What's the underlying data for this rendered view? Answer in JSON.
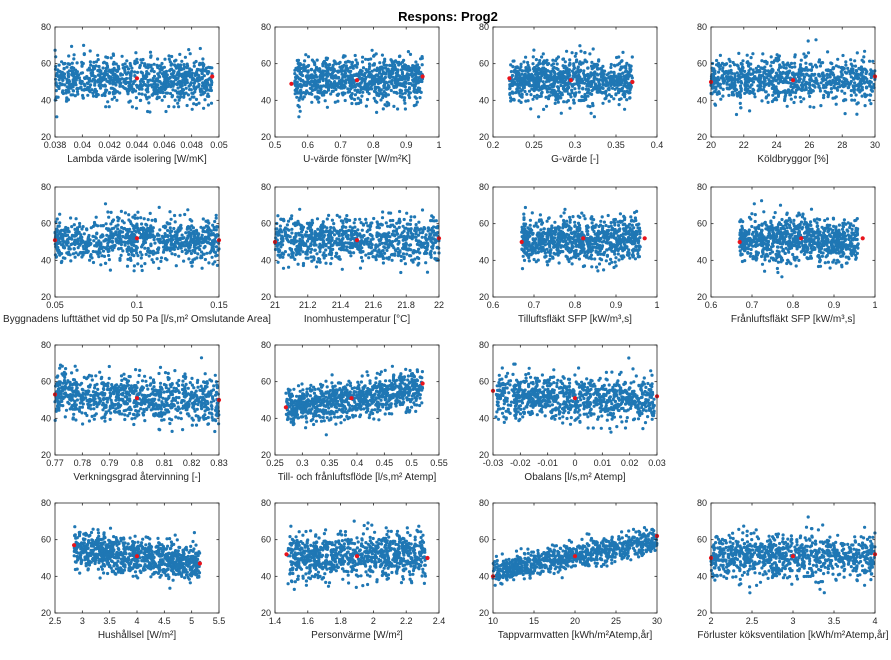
{
  "figure": {
    "title": "Respons: Prog2",
    "point_color": "#1f77b4",
    "highlight_color": "#e8141c"
  },
  "chart_data": [
    {
      "type": "scatter",
      "id": "p1",
      "xlabel": "Lambda värde isolering [W/mK]",
      "xlim": [
        0.038,
        0.05
      ],
      "xticks": [
        0.038,
        0.04,
        0.042,
        0.044,
        0.046,
        0.048,
        0.05
      ],
      "xtick_labels": [
        "0.038",
        "0.04",
        "0.042",
        "0.044",
        "0.046",
        "0.048",
        "0.05"
      ],
      "ylim": [
        20,
        80
      ],
      "yticks": [
        20,
        40,
        60,
        80
      ],
      "x_range": [
        0.038,
        0.0495
      ],
      "y_center": 51,
      "y_spread": 6,
      "trend": 0,
      "highlight": [
        [
          0.044,
          52
        ],
        [
          0.0495,
          53
        ]
      ]
    },
    {
      "type": "scatter",
      "id": "p2",
      "xlabel": "U-värde fönster [W/m²K]",
      "xlim": [
        0.5,
        1
      ],
      "xticks": [
        0.5,
        0.6,
        0.7,
        0.8,
        0.9,
        1
      ],
      "xtick_labels": [
        "0.5",
        "0.6",
        "0.7",
        "0.8",
        "0.9",
        "1"
      ],
      "ylim": [
        20,
        80
      ],
      "yticks": [
        20,
        40,
        60,
        80
      ],
      "x_range": [
        0.56,
        0.95
      ],
      "y_center": 51,
      "y_spread": 6,
      "trend": 0,
      "highlight": [
        [
          0.55,
          49
        ],
        [
          0.75,
          51
        ],
        [
          0.95,
          53
        ]
      ]
    },
    {
      "type": "scatter",
      "id": "p3",
      "xlabel": "G-värde [-]",
      "xlim": [
        0.2,
        0.4
      ],
      "xticks": [
        0.2,
        0.25,
        0.3,
        0.35,
        0.4
      ],
      "xtick_labels": [
        "0.2",
        "0.25",
        "0.3",
        "0.35",
        "0.4"
      ],
      "ylim": [
        20,
        80
      ],
      "yticks": [
        20,
        40,
        60,
        80
      ],
      "x_range": [
        0.22,
        0.37
      ],
      "y_center": 51,
      "y_spread": 6,
      "trend": 0,
      "highlight": [
        [
          0.22,
          52
        ],
        [
          0.295,
          51
        ],
        [
          0.37,
          50
        ]
      ]
    },
    {
      "type": "scatter",
      "id": "p4",
      "xlabel": "Köldbryggor [%]",
      "xlim": [
        20,
        30
      ],
      "xticks": [
        20,
        22,
        24,
        26,
        28,
        30
      ],
      "xtick_labels": [
        "20",
        "22",
        "24",
        "26",
        "28",
        "30"
      ],
      "ylim": [
        20,
        80
      ],
      "yticks": [
        20,
        40,
        60,
        80
      ],
      "x_range": [
        20,
        30
      ],
      "y_center": 51,
      "y_spread": 6,
      "trend": 0,
      "highlight": [
        [
          20,
          50
        ],
        [
          25,
          51
        ],
        [
          30,
          53
        ]
      ]
    },
    {
      "type": "scatter",
      "id": "p5",
      "xlabel": "Byggnadens lufttäthet vid dp 50 Pa [l/s,m² Omslutande Area]",
      "xlim": [
        0.05,
        0.15
      ],
      "xticks": [
        0.05,
        0.1,
        0.15
      ],
      "xtick_labels": [
        "0.05",
        "0.1",
        "0.15"
      ],
      "ylim": [
        20,
        80
      ],
      "yticks": [
        20,
        40,
        60,
        80
      ],
      "x_range": [
        0.05,
        0.15
      ],
      "y_center": 51,
      "y_spread": 6,
      "trend": 0,
      "highlight": [
        [
          0.05,
          51
        ],
        [
          0.1,
          52
        ],
        [
          0.15,
          51
        ]
      ]
    },
    {
      "type": "scatter",
      "id": "p6",
      "xlabel": "Inomhustemperatur [°C]",
      "xlim": [
        21,
        22
      ],
      "xticks": [
        21,
        21.2,
        21.4,
        21.6,
        21.8,
        22
      ],
      "xtick_labels": [
        "21",
        "21.2",
        "21.4",
        "21.6",
        "21.8",
        "22"
      ],
      "ylim": [
        20,
        80
      ],
      "yticks": [
        20,
        40,
        60,
        80
      ],
      "x_range": [
        21,
        22
      ],
      "y_center": 51,
      "y_spread": 6,
      "trend": 0,
      "highlight": [
        [
          21,
          50
        ],
        [
          21.5,
          51
        ],
        [
          22,
          52
        ]
      ]
    },
    {
      "type": "scatter",
      "id": "p7",
      "xlabel": "Tilluftsfläkt SFP [kW/m³,s]",
      "xlim": [
        0.6,
        1
      ],
      "xticks": [
        0.6,
        0.7,
        0.8,
        0.9,
        1
      ],
      "xtick_labels": [
        "0.6",
        "0.7",
        "0.8",
        "0.9",
        "1"
      ],
      "ylim": [
        20,
        80
      ],
      "yticks": [
        20,
        40,
        60,
        80
      ],
      "x_range": [
        0.67,
        0.96
      ],
      "y_center": 51,
      "y_spread": 6,
      "trend": 0,
      "highlight": [
        [
          0.67,
          50
        ],
        [
          0.82,
          52
        ],
        [
          0.97,
          52
        ]
      ]
    },
    {
      "type": "scatter",
      "id": "p8",
      "xlabel": "Frånluftsfläkt SFP [kW/m³,s]",
      "xlim": [
        0.6,
        1
      ],
      "xticks": [
        0.6,
        0.7,
        0.8,
        0.9,
        1
      ],
      "xtick_labels": [
        "0.6",
        "0.7",
        "0.8",
        "0.9",
        "1"
      ],
      "ylim": [
        20,
        80
      ],
      "yticks": [
        20,
        40,
        60,
        80
      ],
      "x_range": [
        0.67,
        0.96
      ],
      "y_center": 51,
      "y_spread": 6,
      "trend": 0,
      "highlight": [
        [
          0.67,
          50
        ],
        [
          0.82,
          52
        ],
        [
          0.97,
          52
        ]
      ]
    },
    {
      "type": "scatter",
      "id": "p9",
      "xlabel": "Verkningsgrad återvinning [-]",
      "xlim": [
        0.77,
        0.83
      ],
      "xticks": [
        0.77,
        0.78,
        0.79,
        0.8,
        0.81,
        0.82,
        0.83
      ],
      "xtick_labels": [
        "0.77",
        "0.78",
        "0.79",
        "0.8",
        "0.81",
        "0.82",
        "0.83"
      ],
      "ylim": [
        20,
        80
      ],
      "yticks": [
        20,
        40,
        60,
        80
      ],
      "x_range": [
        0.77,
        0.83
      ],
      "y_center": 51,
      "y_spread": 6,
      "trend": -0.3,
      "highlight": [
        [
          0.77,
          53
        ],
        [
          0.8,
          51
        ],
        [
          0.83,
          50
        ]
      ]
    },
    {
      "type": "scatter",
      "id": "p10",
      "xlabel": "Till- och frånluftsflöde [l/s,m² Atemp]",
      "xlim": [
        0.25,
        0.55
      ],
      "xticks": [
        0.25,
        0.3,
        0.35,
        0.4,
        0.45,
        0.5,
        0.55
      ],
      "xtick_labels": [
        "0.25",
        "0.3",
        "0.35",
        "0.4",
        "0.45",
        "0.5",
        "0.55"
      ],
      "ylim": [
        20,
        80
      ],
      "yticks": [
        20,
        40,
        60,
        80
      ],
      "x_range": [
        0.27,
        0.52
      ],
      "y_center": 51,
      "y_spread": 5,
      "trend": 1,
      "highlight": [
        [
          0.27,
          46
        ],
        [
          0.39,
          51
        ],
        [
          0.52,
          59
        ]
      ]
    },
    {
      "type": "scatter",
      "id": "p11",
      "xlabel": "Obalans [l/s,m² Atemp]",
      "xlim": [
        -0.03,
        0.03
      ],
      "xticks": [
        -0.03,
        -0.02,
        -0.01,
        0,
        0.01,
        0.02,
        0.03
      ],
      "xtick_labels": [
        "-0.03",
        "-0.02",
        "-0.01",
        "0",
        "0.01",
        "0.02",
        "0.03"
      ],
      "ylim": [
        20,
        80
      ],
      "yticks": [
        20,
        40,
        60,
        80
      ],
      "x_range": [
        -0.029,
        0.029
      ],
      "y_center": 51,
      "y_spread": 6,
      "trend": -0.3,
      "highlight": [
        [
          -0.03,
          55
        ],
        [
          0,
          51
        ],
        [
          0.03,
          52
        ]
      ]
    },
    {
      "type": "scatter",
      "id": "p12",
      "xlabel": "Hushållsel [W/m²]",
      "xlim": [
        2.5,
        5.5
      ],
      "xticks": [
        2.5,
        3,
        3.5,
        4,
        4.5,
        5,
        5.5
      ],
      "xtick_labels": [
        "2.5",
        "3",
        "3.5",
        "4",
        "4.5",
        "5",
        "5.5"
      ],
      "ylim": [
        20,
        80
      ],
      "yticks": [
        20,
        40,
        60,
        80
      ],
      "x_range": [
        2.85,
        5.15
      ],
      "y_center": 51,
      "y_spread": 5,
      "trend": -0.8,
      "highlight": [
        [
          2.85,
          57
        ],
        [
          4,
          51
        ],
        [
          5.15,
          47
        ]
      ]
    },
    {
      "type": "scatter",
      "id": "p13",
      "xlabel": "Personvärme [W/m²]",
      "xlim": [
        1.4,
        2.4
      ],
      "xticks": [
        1.4,
        1.6,
        1.8,
        2,
        2.2,
        2.4
      ],
      "xtick_labels": [
        "1.4",
        "1.6",
        "1.8",
        "2",
        "2.2",
        "2.4"
      ],
      "ylim": [
        20,
        80
      ],
      "yticks": [
        20,
        40,
        60,
        80
      ],
      "x_range": [
        1.48,
        2.32
      ],
      "y_center": 51,
      "y_spread": 6,
      "trend": 0,
      "highlight": [
        [
          1.47,
          52
        ],
        [
          1.9,
          51
        ],
        [
          2.33,
          50
        ]
      ]
    },
    {
      "type": "scatter",
      "id": "p14",
      "xlabel": "Tappvarmvatten [kWh/m²Atemp,år]",
      "xlim": [
        10,
        30
      ],
      "xticks": [
        10,
        15,
        20,
        25,
        30
      ],
      "xtick_labels": [
        "10",
        "15",
        "20",
        "25",
        "30"
      ],
      "ylim": [
        20,
        80
      ],
      "yticks": [
        20,
        40,
        60,
        80
      ],
      "x_range": [
        10,
        30
      ],
      "y_center": 51,
      "y_spread": 3.5,
      "trend": 1.6,
      "highlight": [
        [
          10,
          40
        ],
        [
          20,
          51
        ],
        [
          30,
          62
        ]
      ]
    },
    {
      "type": "scatter",
      "id": "p15",
      "xlabel": "Förluster köksventilation [kWh/m²Atemp,år]",
      "xlim": [
        2,
        4
      ],
      "xticks": [
        2,
        2.5,
        3,
        3.5,
        4
      ],
      "xtick_labels": [
        "2",
        "2.5",
        "3",
        "3.5",
        "4"
      ],
      "ylim": [
        20,
        80
      ],
      "yticks": [
        20,
        40,
        60,
        80
      ],
      "x_range": [
        2,
        4
      ],
      "y_center": 51,
      "y_spread": 6,
      "trend": 0,
      "highlight": [
        [
          2,
          50
        ],
        [
          3,
          51
        ],
        [
          4,
          52
        ]
      ]
    }
  ]
}
